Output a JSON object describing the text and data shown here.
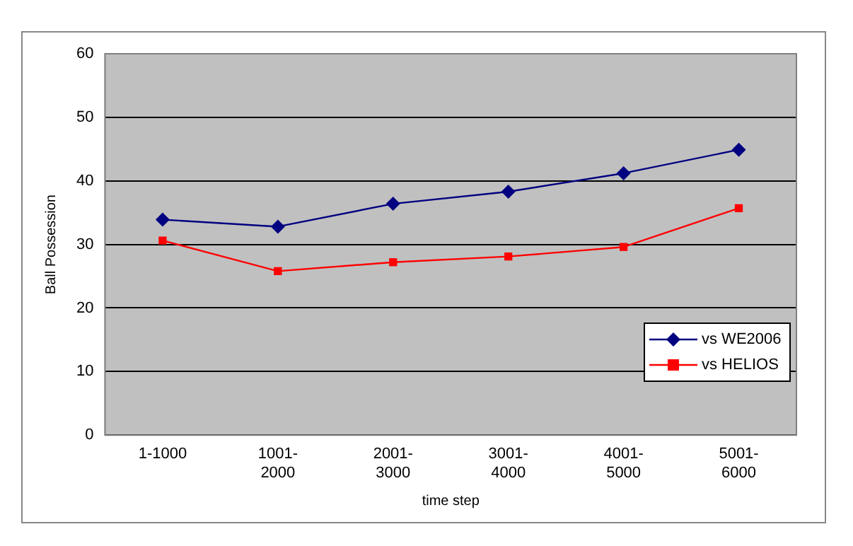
{
  "chart_data": {
    "type": "line",
    "xlabel": "time step",
    "ylabel": "Ball Possession",
    "categories": [
      "1-1000",
      "1001-\n2000",
      "2001-\n3000",
      "3001-\n4000",
      "4001-\n5000",
      "5001-\n6000"
    ],
    "series": [
      {
        "name": "vs WE2006",
        "color": "#000080",
        "marker": "diamond",
        "values": [
          33.9,
          32.8,
          36.4,
          38.3,
          41.2,
          44.9
        ]
      },
      {
        "name": "vs HELIOS",
        "color": "#ff0000",
        "marker": "square",
        "values": [
          30.6,
          25.8,
          27.2,
          28.1,
          29.6,
          35.7
        ]
      }
    ],
    "ylim": [
      0,
      60
    ],
    "yticks": [
      0,
      10,
      20,
      30,
      40,
      50,
      60
    ],
    "grid": "y",
    "legend": "bottom right"
  }
}
